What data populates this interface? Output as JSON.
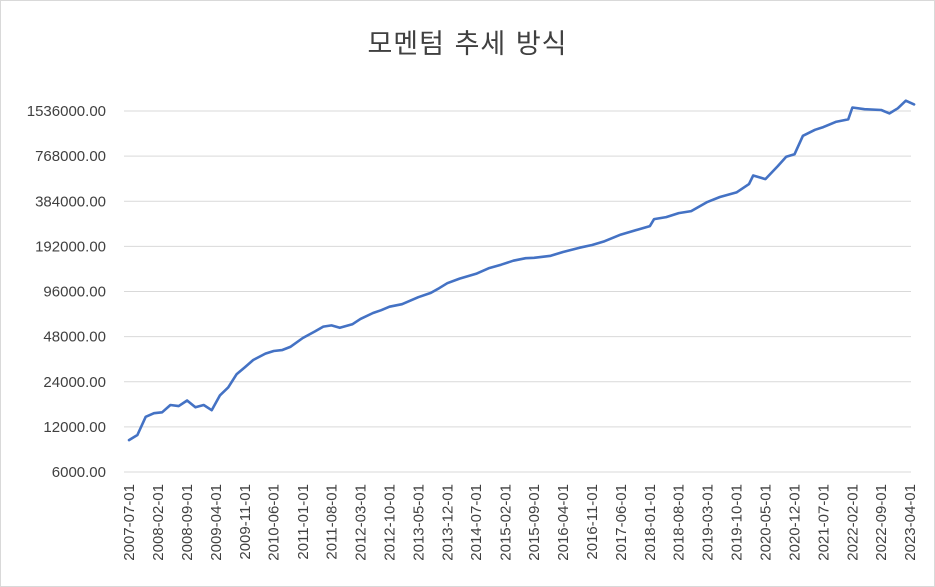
{
  "chart_data": {
    "type": "line",
    "title": "모멘텀 추세 방식",
    "y_scale": "log2",
    "ylim": [
      6000,
      1536000
    ],
    "y_ticks": [
      "6000.00",
      "12000.00",
      "24000.00",
      "48000.00",
      "96000.00",
      "192000.00",
      "384000.00",
      "768000.00",
      "1536000.00"
    ],
    "x_ticks": [
      "2007-07-01",
      "2008-02-01",
      "2008-09-01",
      "2009-04-01",
      "2009-11-01",
      "2010-06-01",
      "2011-01-01",
      "2011-08-01",
      "2012-03-01",
      "2012-10-01",
      "2013-05-01",
      "2013-12-01",
      "2014-07-01",
      "2015-02-01",
      "2015-09-01",
      "2016-04-01",
      "2016-11-01",
      "2017-06-01",
      "2018-01-01",
      "2018-08-01",
      "2019-03-01",
      "2019-10-01",
      "2020-05-01",
      "2020-12-01",
      "2021-07-01",
      "2022-02-01",
      "2022-09-01",
      "2023-04-01"
    ],
    "grid": true,
    "line_color": "#4472c4",
    "series": [
      {
        "points": [
          [
            "2007-07-01",
            9800
          ],
          [
            "2007-09-01",
            10600
          ],
          [
            "2007-11-01",
            14000
          ],
          [
            "2008-01-01",
            14800
          ],
          [
            "2008-03-01",
            15000
          ],
          [
            "2008-05-01",
            16800
          ],
          [
            "2008-07-01",
            16500
          ],
          [
            "2008-09-01",
            18000
          ],
          [
            "2008-11-01",
            16200
          ],
          [
            "2009-01-01",
            16800
          ],
          [
            "2009-03-01",
            15500
          ],
          [
            "2009-05-01",
            19500
          ],
          [
            "2009-07-01",
            22000
          ],
          [
            "2009-09-01",
            27000
          ],
          [
            "2009-11-01",
            30000
          ],
          [
            "2010-01-01",
            33500
          ],
          [
            "2010-04-01",
            37000
          ],
          [
            "2010-06-01",
            38500
          ],
          [
            "2010-08-01",
            39000
          ],
          [
            "2010-10-01",
            41000
          ],
          [
            "2011-01-01",
            47000
          ],
          [
            "2011-04-01",
            52000
          ],
          [
            "2011-06-01",
            56000
          ],
          [
            "2011-08-01",
            57000
          ],
          [
            "2011-10-01",
            55000
          ],
          [
            "2012-01-01",
            58000
          ],
          [
            "2012-03-01",
            63000
          ],
          [
            "2012-06-01",
            69000
          ],
          [
            "2012-08-01",
            72000
          ],
          [
            "2012-10-01",
            76000
          ],
          [
            "2013-01-01",
            79000
          ],
          [
            "2013-05-01",
            88000
          ],
          [
            "2013-08-01",
            94000
          ],
          [
            "2013-10-01",
            101000
          ],
          [
            "2013-12-01",
            109000
          ],
          [
            "2014-03-01",
            117000
          ],
          [
            "2014-07-01",
            126000
          ],
          [
            "2014-10-01",
            137000
          ],
          [
            "2015-01-01",
            145000
          ],
          [
            "2015-04-01",
            154000
          ],
          [
            "2015-07-01",
            160000
          ],
          [
            "2015-09-01",
            161000
          ],
          [
            "2016-01-01",
            166000
          ],
          [
            "2016-04-01",
            176000
          ],
          [
            "2016-08-01",
            188000
          ],
          [
            "2016-11-01",
            196000
          ],
          [
            "2017-02-01",
            208000
          ],
          [
            "2017-06-01",
            230000
          ],
          [
            "2017-10-01",
            248000
          ],
          [
            "2018-01-01",
            262000
          ],
          [
            "2018-02-01",
            292000
          ],
          [
            "2018-05-01",
            301000
          ],
          [
            "2018-08-01",
            320000
          ],
          [
            "2018-11-01",
            330000
          ],
          [
            "2019-03-01",
            380000
          ],
          [
            "2019-06-01",
            410000
          ],
          [
            "2019-10-01",
            440000
          ],
          [
            "2020-01-01",
            500000
          ],
          [
            "2020-02-01",
            570000
          ],
          [
            "2020-05-01",
            540000
          ],
          [
            "2020-08-01",
            660000
          ],
          [
            "2020-10-01",
            760000
          ],
          [
            "2020-12-01",
            790000
          ],
          [
            "2021-02-01",
            1050000
          ],
          [
            "2021-05-01",
            1150000
          ],
          [
            "2021-07-01",
            1200000
          ],
          [
            "2021-10-01",
            1300000
          ],
          [
            "2022-01-01",
            1350000
          ],
          [
            "2022-02-01",
            1620000
          ],
          [
            "2022-05-01",
            1580000
          ],
          [
            "2022-09-01",
            1560000
          ],
          [
            "2022-11-01",
            1480000
          ],
          [
            "2023-01-01",
            1600000
          ],
          [
            "2023-03-01",
            1800000
          ],
          [
            "2023-05-01",
            1700000
          ]
        ]
      }
    ]
  }
}
